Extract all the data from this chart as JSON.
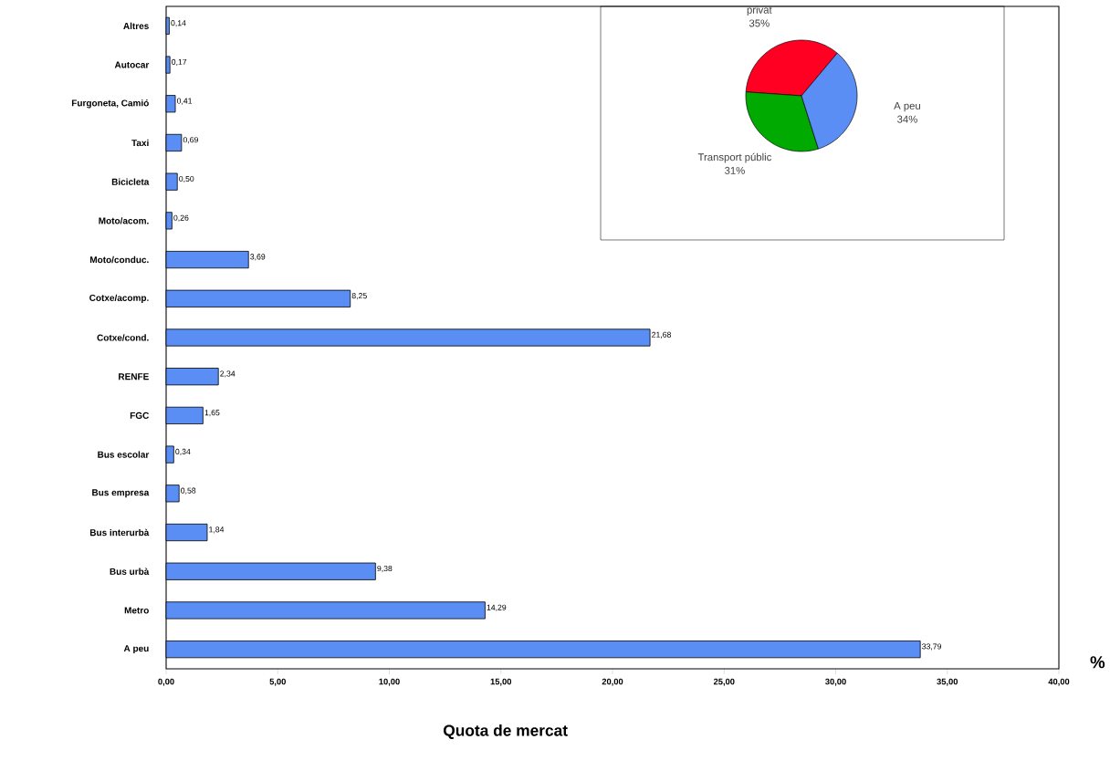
{
  "chart_data": [
    {
      "type": "bar",
      "orientation": "horizontal",
      "categories": [
        "Altres",
        "Autocar",
        "Furgoneta, Camió",
        "Taxi",
        "Bicicleta",
        "Moto/acom.",
        "Moto/conduc.",
        "Cotxe/acomp.",
        "Cotxe/cond.",
        "RENFE",
        "FGC",
        "Bus escolar",
        "Bus empresa",
        "Bus interurbà",
        "Bus urbà",
        "Metro",
        "A peu"
      ],
      "values": [
        0.14,
        0.17,
        0.41,
        0.69,
        0.5,
        0.26,
        3.69,
        8.25,
        21.68,
        2.34,
        1.65,
        0.34,
        0.58,
        1.84,
        9.38,
        14.29,
        33.79
      ],
      "value_labels": [
        "0,14",
        "0,17",
        "0,41",
        "0,69",
        "0,50",
        "0,26",
        "3,69",
        "8,25",
        "21,68",
        "2,34",
        "1,65",
        "0,34",
        "0,58",
        "1,84",
        "9,38",
        "14,29",
        "33,79"
      ],
      "color": "#5b8ef5",
      "xlim": [
        0,
        40
      ],
      "xticks": [
        {
          "value": 0,
          "label": "0,00"
        },
        {
          "value": 5,
          "label": "5,00"
        },
        {
          "value": 10,
          "label": "10,00"
        },
        {
          "value": 15,
          "label": "15,00"
        },
        {
          "value": 20,
          "label": "20,00"
        },
        {
          "value": 25,
          "label": "25,00"
        },
        {
          "value": 30,
          "label": "30,00"
        },
        {
          "value": 35,
          "label": "35,00"
        },
        {
          "value": 40,
          "label": "40,00"
        }
      ],
      "xlabel": "Quota de mercat",
      "annotations": [
        "%"
      ]
    },
    {
      "type": "pie",
      "categories": [
        "privat",
        "Transport públic",
        "A peu"
      ],
      "values": [
        35,
        31,
        34
      ],
      "value_labels": [
        "35%",
        "31%",
        "34%"
      ],
      "colors": [
        "#ff0022",
        "#00aa00",
        "#5b8ef5"
      ]
    }
  ]
}
